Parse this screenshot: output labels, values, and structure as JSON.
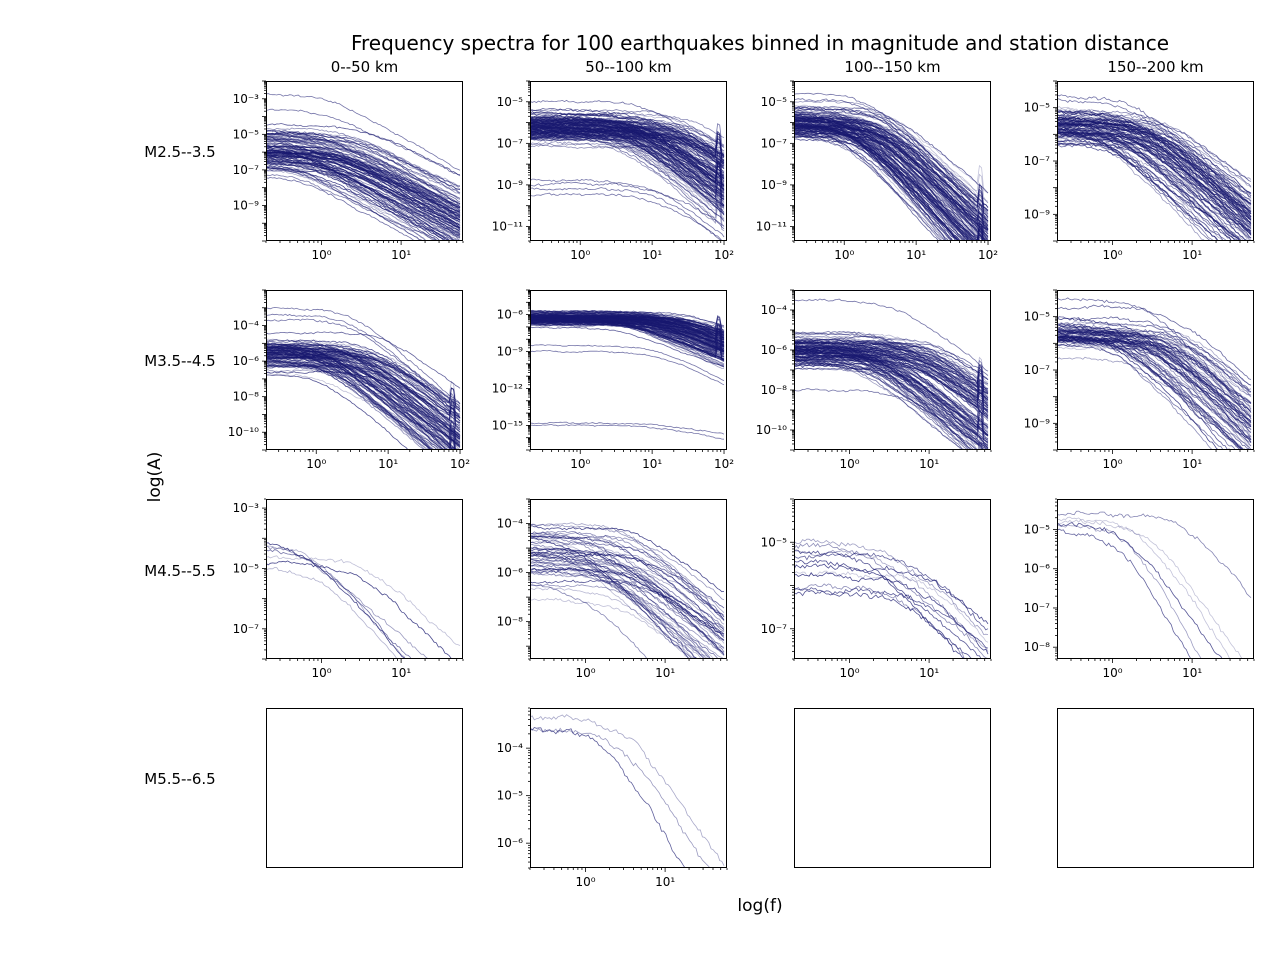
{
  "title": "Frequency spectra for 100 earthquakes binned in magnitude and station distance",
  "xlabel": "log(f)",
  "ylabel": "log(A)",
  "columns": [
    "0--50 km",
    "50--100 km",
    "100--150 km",
    "150--200 km"
  ],
  "rows": [
    "M2.5--3.5",
    "M3.5--4.5",
    "M4.5--5.5",
    "M5.5--6.5"
  ],
  "line_color": "#191970",
  "chart_data": {
    "type": "line",
    "title": "Frequency spectra for 100 earthquakes binned in magnitude and station distance",
    "xlabel": "log(f)",
    "ylabel": "log(A)",
    "xscale": "log",
    "yscale": "log",
    "panels": [
      {
        "row": 0,
        "col": 0,
        "empty": false,
        "xlim": [
          0.2,
          60
        ],
        "ylim": [
          1e-11,
          0.01
        ],
        "xticks": [
          0,
          1
        ],
        "yticks": [
          -3,
          -5,
          -7,
          -9
        ],
        "nlines": 110,
        "flat_range": [
          -7.5,
          -4.3
        ],
        "corner": [
          0.4,
          3
        ],
        "drop": 2.4,
        "fmax": 55,
        "outliers": [
          {
            "level": -2.7,
            "drop": 2.5
          },
          {
            "level": -3.6,
            "drop": 2.2
          }
        ]
      },
      {
        "row": 0,
        "col": 1,
        "empty": false,
        "xlim": [
          0.2,
          110
        ],
        "ylim": [
          2e-12,
          0.0001
        ],
        "xticks": [
          0,
          1,
          2
        ],
        "yticks": [
          -5,
          -7,
          -9,
          -11
        ],
        "nlines": 140,
        "flat_range": [
          -7.2,
          -5.2
        ],
        "corner": [
          3,
          40
        ],
        "drop": 2.6,
        "fmax": 100,
        "spike": 85,
        "outliers": [
          {
            "level": -8.8,
            "drop": 2.8
          },
          {
            "level": -9.2,
            "drop": 2.6
          },
          {
            "level": -9.5,
            "drop": 2.2
          },
          {
            "level": -9.0,
            "drop": 2.0
          },
          {
            "level": -5.0,
            "drop": 3.0
          }
        ]
      },
      {
        "row": 0,
        "col": 2,
        "empty": false,
        "xlim": [
          0.2,
          110
        ],
        "ylim": [
          2e-12,
          0.0001
        ],
        "xticks": [
          0,
          1,
          2
        ],
        "yticks": [
          -5,
          -7,
          -9,
          -11
        ],
        "nlines": 130,
        "flat_range": [
          -7,
          -5
        ],
        "corner": [
          0.8,
          5
        ],
        "drop": 3.5,
        "fmax": 100,
        "spike": 80,
        "outliers": [
          {
            "level": -4.6,
            "drop": 3.5
          },
          {
            "level": -4.9,
            "drop": 3.2
          }
        ]
      },
      {
        "row": 0,
        "col": 3,
        "empty": false,
        "xlim": [
          0.2,
          60
        ],
        "ylim": [
          1e-10,
          0.0001
        ],
        "xticks": [
          0,
          1
        ],
        "yticks": [
          -5,
          -7,
          -9
        ],
        "nlines": 90,
        "flat_range": [
          -6.6,
          -4.8
        ],
        "corner": [
          0.6,
          5
        ],
        "drop": 2.6,
        "fmax": 55,
        "outliers": [
          {
            "level": -4.5,
            "drop": 2.8
          },
          {
            "level": -4.7,
            "drop": 3
          }
        ]
      },
      {
        "row": 1,
        "col": 0,
        "empty": false,
        "xlim": [
          0.2,
          110
        ],
        "ylim": [
          1e-11,
          0.01
        ],
        "xticks": [
          0,
          1,
          2
        ],
        "yticks": [
          -4,
          -6,
          -8,
          -10
        ],
        "nlines": 110,
        "flat_range": [
          -7,
          -4.3
        ],
        "corner": [
          0.8,
          10
        ],
        "drop": 3.2,
        "fmax": 100,
        "spike": 80,
        "outliers": [
          {
            "level": -3.0,
            "drop": 3.5
          },
          {
            "level": -3.4,
            "drop": 3.5
          },
          {
            "level": -3.7,
            "drop": 3.2
          }
        ]
      },
      {
        "row": 1,
        "col": 1,
        "empty": false,
        "xlim": [
          0.2,
          110
        ],
        "ylim": [
          1e-17,
          0.0001
        ],
        "xticks": [
          0,
          1,
          2
        ],
        "yticks": [
          -6,
          -9,
          -12,
          -15
        ],
        "nlines": 150,
        "flat_range": [
          -7,
          -5.6
        ],
        "corner": [
          3,
          40
        ],
        "drop": 2.4,
        "fmax": 100,
        "spike": 85,
        "outliers": [
          {
            "level": -15,
            "drop": 1.2
          },
          {
            "level": -14.8,
            "drop": 1.0
          },
          {
            "level": -9,
            "drop": 2.8
          },
          {
            "level": -8.5,
            "drop": 3
          }
        ]
      },
      {
        "row": 1,
        "col": 2,
        "empty": false,
        "xlim": [
          0.2,
          60
        ],
        "ylim": [
          1e-11,
          0.001
        ],
        "xticks": [
          0,
          1
        ],
        "yticks": [
          -4,
          -6,
          -8,
          -10
        ],
        "nlines": 120,
        "flat_range": [
          -7,
          -5
        ],
        "corner": [
          1,
          15
        ],
        "drop": 3.2,
        "fmax": 55,
        "spike": 45,
        "outliers": [
          {
            "level": -3.5,
            "drop": 3
          },
          {
            "level": -8,
            "drop": 2.5
          }
        ]
      },
      {
        "row": 1,
        "col": 3,
        "empty": false,
        "xlim": [
          0.2,
          60
        ],
        "ylim": [
          1e-10,
          0.0001
        ],
        "xticks": [
          0,
          1
        ],
        "yticks": [
          -5,
          -7,
          -9
        ],
        "nlines": 70,
        "flat_range": [
          -6.6,
          -4.7
        ],
        "corner": [
          1,
          8
        ],
        "drop": 2.8,
        "fmax": 55,
        "outliers": [
          {
            "level": -4.3,
            "drop": 3.5
          }
        ]
      },
      {
        "row": 2,
        "col": 0,
        "empty": false,
        "xlim": [
          0.2,
          60
        ],
        "ylim": [
          1e-08,
          0.002
        ],
        "xticks": [
          0,
          1
        ],
        "yticks": [
          -3,
          -5,
          -7
        ],
        "nlines": 7,
        "flat_range": [
          -5.5,
          -3.1
        ],
        "corner": [
          0.4,
          5
        ],
        "drop": 2.8,
        "fmax": 55,
        "outliers": []
      },
      {
        "row": 2,
        "col": 1,
        "empty": false,
        "xlim": [
          0.2,
          60
        ],
        "ylim": [
          3e-10,
          0.001
        ],
        "xticks": [
          0,
          1
        ],
        "yticks": [
          -4,
          -6,
          -8
        ],
        "nlines": 50,
        "flat_range": [
          -7,
          -3.6
        ],
        "corner": [
          0.6,
          8
        ],
        "drop": 2.8,
        "fmax": 55,
        "outliers": []
      },
      {
        "row": 2,
        "col": 2,
        "empty": false,
        "xlim": [
          0.2,
          60
        ],
        "ylim": [
          2e-08,
          0.0001
        ],
        "xticks": [
          0,
          1
        ],
        "yticks": [
          -5,
          -7
        ],
        "nlines": 12,
        "flat_range": [
          -6.5,
          -4.4
        ],
        "corner": [
          1,
          10
        ],
        "drop": 1.8,
        "fmax": 55,
        "outliers": []
      },
      {
        "row": 2,
        "col": 3,
        "empty": false,
        "xlim": [
          0.2,
          60
        ],
        "ylim": [
          5e-09,
          6e-05
        ],
        "xticks": [
          0,
          1
        ],
        "yticks": [
          -5,
          -6,
          -7,
          -8
        ],
        "nlines": 6,
        "flat_range": [
          -5.4,
          -4.3
        ],
        "corner": [
          1,
          10
        ],
        "drop": 3.2,
        "fmax": 55,
        "outliers": []
      },
      {
        "row": 3,
        "col": 0,
        "empty": true
      },
      {
        "row": 3,
        "col": 1,
        "empty": false,
        "xlim": [
          0.2,
          60
        ],
        "ylim": [
          3e-07,
          0.0007
        ],
        "xticks": [
          0,
          1
        ],
        "yticks": [
          -4,
          -5,
          -6
        ],
        "nlines": 3,
        "flat_range": [
          -3.7,
          -3.3
        ],
        "corner": [
          1.5,
          3
        ],
        "drop": 2.6,
        "fmax": 55,
        "outliers": []
      },
      {
        "row": 3,
        "col": 2,
        "empty": true
      },
      {
        "row": 3,
        "col": 3,
        "empty": true
      }
    ]
  }
}
